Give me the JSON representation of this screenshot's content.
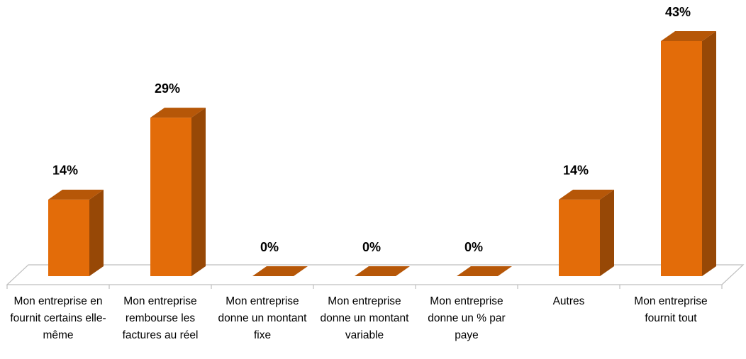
{
  "chart_data": {
    "type": "bar3d",
    "categories": [
      "Mon entreprise en fournit certains elle-même",
      "Mon entreprise rembourse les factures au réel",
      "Mon entreprise donne un montant fixe",
      "Mon entreprise donne un montant variable",
      "Mon entreprise donne un % par paye",
      "Autres",
      "Mon entreprise fournit tout"
    ],
    "values": [
      14,
      29,
      0,
      0,
      0,
      14,
      43
    ],
    "value_labels": [
      "14%",
      "29%",
      "0%",
      "0%",
      "0%",
      "14%",
      "43%"
    ],
    "color": "#e36c09"
  }
}
